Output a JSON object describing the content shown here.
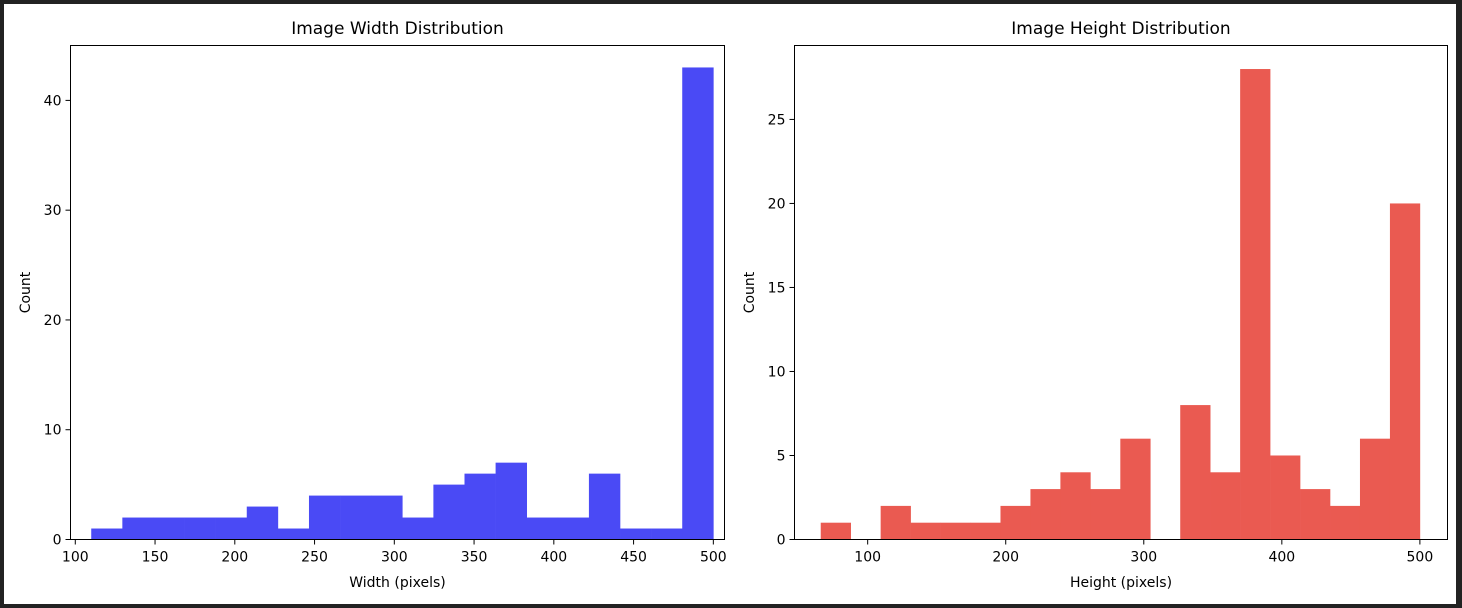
{
  "chart_data": [
    {
      "type": "bar",
      "title": "Image Width Distribution",
      "xlabel": "Width (pixels)",
      "ylabel": "Count",
      "xlim": [
        97,
        507
      ],
      "ylim": [
        0,
        45
      ],
      "xticks": [
        100,
        150,
        200,
        250,
        300,
        350,
        400,
        450,
        500
      ],
      "yticks": [
        0,
        10,
        20,
        30,
        40
      ],
      "bin_edges": [
        110,
        129.5,
        149,
        168.5,
        188,
        207.5,
        227,
        246.5,
        266,
        285.5,
        305,
        324.5,
        344,
        363.5,
        383,
        402.5,
        422,
        441.5,
        461,
        480.5,
        500
      ],
      "values": [
        1,
        2,
        2,
        2,
        2,
        3,
        1,
        4,
        4,
        4,
        2,
        5,
        6,
        7,
        2,
        2,
        6,
        1,
        1,
        43
      ],
      "color": "#4a4af5",
      "grid": false,
      "legend": "none"
    },
    {
      "type": "bar",
      "title": "Image Height Distribution",
      "xlabel": "Height (pixels)",
      "ylabel": "Count",
      "xlim": [
        47,
        520
      ],
      "ylim": [
        0,
        29.4
      ],
      "xticks": [
        100,
        200,
        300,
        400,
        500
      ],
      "yticks": [
        0,
        5,
        10,
        15,
        20,
        25
      ],
      "bin_edges": [
        66,
        87.7,
        109.4,
        131.1,
        152.8,
        174.5,
        196.2,
        217.9,
        239.6,
        261.3,
        283,
        304.7,
        326.4,
        348.1,
        369.8,
        391.5,
        413.2,
        434.9,
        456.6,
        478.3,
        500
      ],
      "values": [
        1,
        0,
        2,
        1,
        1,
        1,
        2,
        3,
        4,
        3,
        6,
        0,
        8,
        4,
        28,
        5,
        3,
        2,
        6,
        20
      ],
      "color": "#ea5a51",
      "grid": false,
      "legend": "none"
    }
  ]
}
